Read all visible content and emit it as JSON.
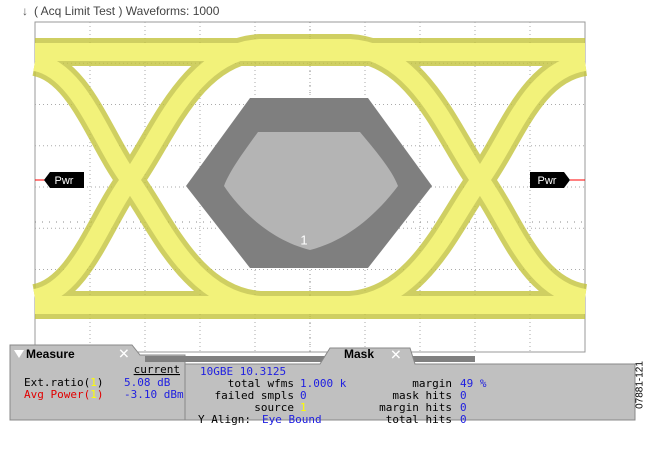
{
  "header": {
    "title": "( Acq Limit Test )  Waveforms: 1000"
  },
  "screen": {
    "left_marker": "Pwr",
    "right_marker": "Pwr",
    "mask_label": "1"
  },
  "measure": {
    "tab": "Measure",
    "column": "current",
    "rows": [
      {
        "prefix": "Ext.ratio(",
        "source": "1",
        "suffix": ")",
        "value": "5.08 dB"
      },
      {
        "prefix": "Avg Power(",
        "source": "1",
        "suffix": ")",
        "value": "-3.10 dBm"
      }
    ]
  },
  "mask": {
    "tab": "Mask",
    "standard": "10GBE 10.3125",
    "left": [
      {
        "label": "total wfms",
        "value": "1.000 k"
      },
      {
        "label": "failed smpls",
        "value": "0"
      },
      {
        "label": "source",
        "value": "1"
      },
      {
        "label": "Y Align:",
        "value": "Eye Bound"
      }
    ],
    "right": [
      {
        "label": "margin",
        "value": "49 %"
      },
      {
        "label": "mask hits",
        "value": "0"
      },
      {
        "label": "margin hits",
        "value": "0"
      },
      {
        "label": "total hits",
        "value": "0"
      }
    ]
  },
  "figure_id": "07881-121"
}
